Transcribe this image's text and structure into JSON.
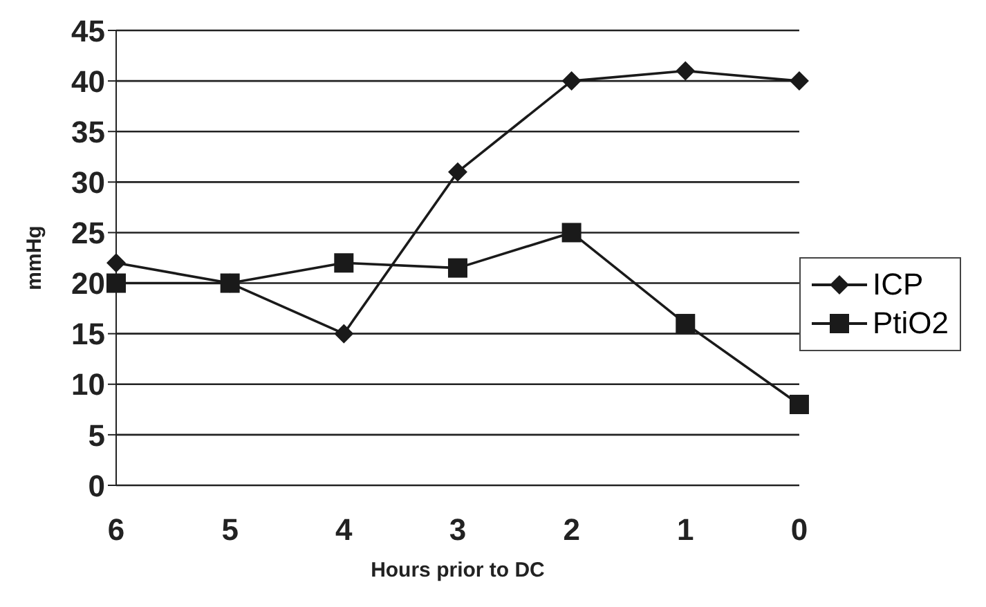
{
  "chart_data": {
    "type": "line",
    "xlabel": "Hours prior to DC",
    "ylabel": "mmHg",
    "categories": [
      "6",
      "5",
      "4",
      "3",
      "2",
      "1",
      "0"
    ],
    "series": [
      {
        "name": "ICP",
        "color": "#1a1a1a",
        "marker": "diamond",
        "values": [
          22,
          20,
          15,
          31,
          40,
          41,
          40
        ]
      },
      {
        "name": "PtiO2",
        "color": "#1a1a1a",
        "marker": "square",
        "values": [
          20,
          20,
          22,
          21.5,
          25,
          16,
          8
        ]
      }
    ],
    "ylim": [
      0,
      45
    ],
    "yticks": [
      0,
      5,
      10,
      15,
      20,
      25,
      30,
      35,
      40,
      45
    ],
    "grid": "y",
    "legend": "right",
    "line_style": "solid"
  }
}
